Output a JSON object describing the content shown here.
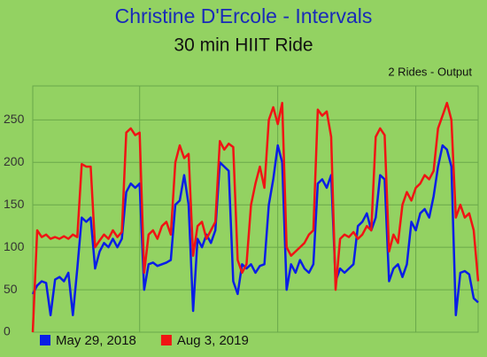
{
  "chart_data": {
    "type": "line",
    "title": "Christine D'Ercole - Intervals",
    "subtitle": "30 min HIIT Ride",
    "annotation": "2 Rides - Output",
    "x": [
      0,
      1,
      2,
      3,
      4,
      5,
      6,
      7,
      8,
      9,
      10,
      11,
      12,
      13,
      14,
      15,
      16,
      17,
      18,
      19,
      20,
      21,
      22,
      23,
      24,
      25,
      26,
      27,
      28,
      29,
      30,
      31,
      32,
      33,
      34,
      35,
      36,
      37,
      38,
      39,
      40,
      41,
      42,
      43,
      44,
      45,
      46,
      47,
      48,
      49,
      50,
      51,
      52,
      53,
      54,
      55,
      56,
      57,
      58,
      59,
      60,
      61,
      62,
      63,
      64,
      65,
      66,
      67,
      68,
      69,
      70,
      71,
      72,
      73,
      74,
      75,
      76,
      77,
      78,
      79,
      80,
      81,
      82,
      83,
      84,
      85,
      86,
      87,
      88,
      89,
      90,
      91,
      92,
      93,
      94,
      95,
      96,
      97,
      98,
      99,
      100
    ],
    "series": [
      {
        "name": "May 29, 2018",
        "color": "#0a1ee6",
        "values": [
          45,
          55,
          60,
          58,
          20,
          62,
          65,
          60,
          70,
          20,
          75,
          135,
          130,
          135,
          75,
          95,
          105,
          100,
          110,
          100,
          110,
          165,
          175,
          170,
          175,
          50,
          80,
          82,
          78,
          80,
          82,
          85,
          150,
          155,
          185,
          150,
          25,
          110,
          100,
          115,
          105,
          120,
          200,
          195,
          190,
          60,
          45,
          80,
          75,
          80,
          70,
          78,
          80,
          150,
          180,
          220,
          200,
          50,
          80,
          70,
          85,
          75,
          70,
          80,
          175,
          180,
          170,
          185,
          60,
          75,
          70,
          75,
          80,
          125,
          130,
          140,
          120,
          135,
          185,
          180,
          60,
          75,
          80,
          65,
          80,
          130,
          120,
          140,
          145,
          135,
          160,
          195,
          220,
          215,
          195,
          20,
          70,
          72,
          68,
          40,
          35
        ]
      },
      {
        "name": "Aug 3, 2019",
        "color": "#f01414",
        "values": [
          0,
          120,
          112,
          115,
          110,
          112,
          110,
          113,
          110,
          115,
          112,
          198,
          195,
          195,
          100,
          108,
          115,
          110,
          120,
          112,
          118,
          235,
          240,
          232,
          235,
          70,
          115,
          120,
          110,
          125,
          130,
          115,
          200,
          220,
          205,
          210,
          90,
          125,
          130,
          110,
          120,
          130,
          225,
          215,
          222,
          218,
          85,
          70,
          80,
          150,
          175,
          195,
          170,
          250,
          265,
          245,
          270,
          100,
          90,
          95,
          100,
          105,
          115,
          120,
          262,
          255,
          260,
          230,
          50,
          110,
          115,
          112,
          118,
          110,
          115,
          125,
          120,
          230,
          240,
          232,
          95,
          115,
          105,
          150,
          165,
          155,
          170,
          175,
          185,
          180,
          190,
          240,
          255,
          270,
          250,
          135,
          150,
          135,
          140,
          120,
          60
        ]
      }
    ],
    "xlim": [
      0,
      100
    ],
    "xticks": [
      24,
      55,
      86
    ],
    "ylim": [
      0,
      290
    ],
    "yticks": [
      0,
      50,
      100,
      150,
      200,
      250
    ],
    "grid": true,
    "legend": "bottom-left"
  }
}
